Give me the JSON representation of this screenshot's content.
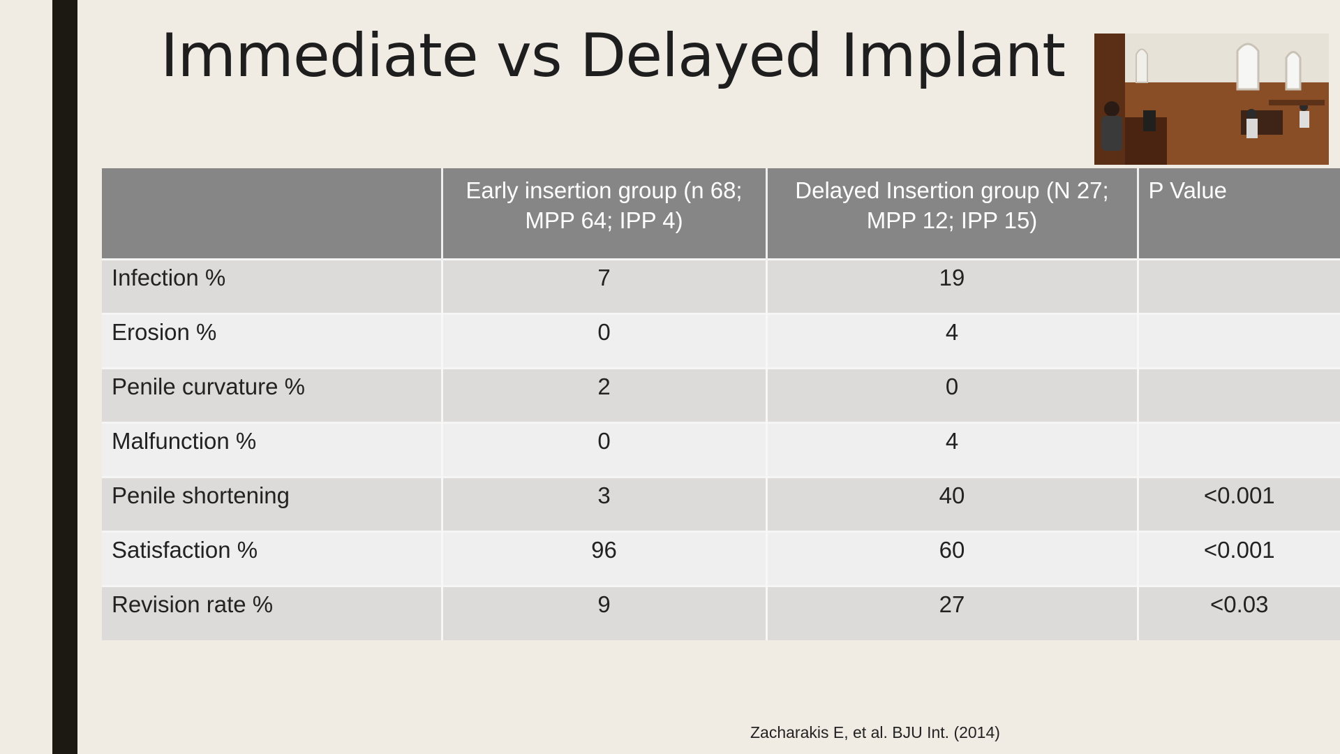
{
  "slide": {
    "title": "Immediate vs Delayed Implant",
    "citation": "Zacharakis E, et al.  BJU Int. (2014)"
  },
  "table": {
    "headers": [
      "",
      "Early insertion group (n 68; MPP 64; IPP 4)",
      "Delayed Insertion group (N 27; MPP 12; IPP 15)",
      "P Value"
    ],
    "rows": [
      [
        "Infection %",
        "7",
        "19",
        ""
      ],
      [
        "Erosion %",
        "0",
        "4",
        ""
      ],
      [
        "Penile curvature %",
        "2",
        "0",
        ""
      ],
      [
        "Malfunction %",
        "0",
        "4",
        ""
      ],
      [
        "Penile shortening",
        "3",
        "40",
        "<0.001"
      ],
      [
        "Satisfaction %",
        "96",
        "60",
        "<0.001"
      ],
      [
        "Revision rate %",
        "9",
        "27",
        "<0.03"
      ]
    ]
  },
  "colors": {
    "background": "#f1ece3",
    "accent_bar": "#1c1912",
    "header_fill": "#868686",
    "row_dark": "#dcdbd9",
    "row_light": "#efefef"
  }
}
